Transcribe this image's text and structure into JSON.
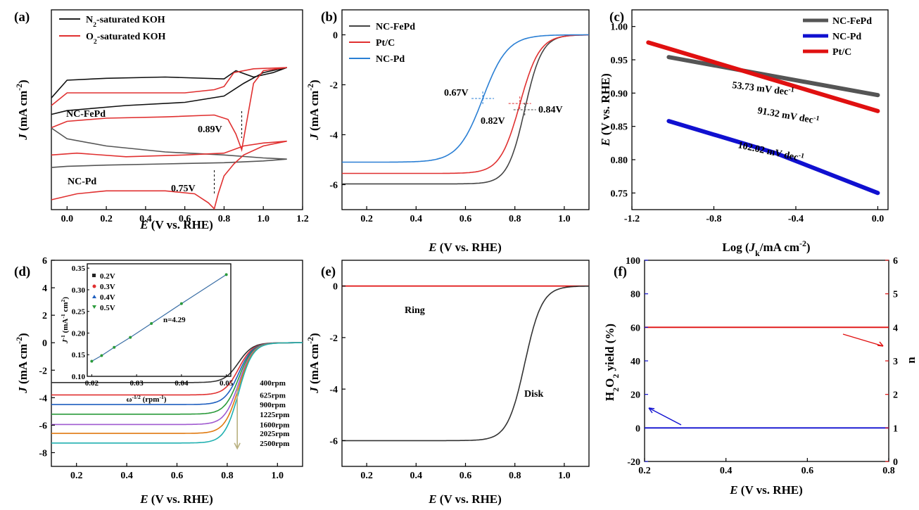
{
  "chart_data": [
    {
      "id": "a",
      "type": "line",
      "panel_label": "(a)",
      "xlabel": "E (V vs. RHE)",
      "ylabel": "J (mA cm-2)",
      "xlim": [
        -0.08,
        1.2
      ],
      "xticks": [
        "0.0",
        "0.2",
        "0.4",
        "0.6",
        "0.8",
        "1.0",
        "1.2"
      ],
      "legend": [
        {
          "label": "N2-saturated KOH",
          "color": "#222222"
        },
        {
          "label": "O2-saturated KOH",
          "color": "#e03030"
        }
      ],
      "curve_labels": [
        "NC-FePd",
        "NC-Pd"
      ],
      "peak_annotations": [
        {
          "label": "0.89V",
          "E": 0.89,
          "sample": "NC-FePd"
        },
        {
          "label": "0.75V",
          "E": 0.75,
          "sample": "NC-Pd"
        }
      ],
      "series": [
        {
          "name": "NC-FePd N2",
          "color": "#111111",
          "cyclic": true,
          "forward": [
            [
              -0.08,
              0.32
            ],
            [
              0.0,
              0.6
            ],
            [
              0.2,
              0.63
            ],
            [
              0.5,
              0.65
            ],
            [
              0.8,
              0.62
            ],
            [
              0.86,
              0.75
            ],
            [
              0.95,
              0.65
            ],
            [
              1.05,
              0.72
            ],
            [
              1.12,
              0.8
            ]
          ],
          "reverse": [
            [
              1.12,
              0.8
            ],
            [
              1.0,
              0.72
            ],
            [
              0.9,
              0.55
            ],
            [
              0.8,
              0.35
            ],
            [
              0.6,
              0.25
            ],
            [
              0.3,
              0.2
            ],
            [
              0.0,
              0.12
            ],
            [
              -0.08,
              0.06
            ]
          ]
        },
        {
          "name": "NC-FePd O2",
          "color": "#e03030",
          "cyclic": true,
          "forward": [
            [
              -0.08,
              0.2
            ],
            [
              0.0,
              0.4
            ],
            [
              0.3,
              0.4
            ],
            [
              0.6,
              0.4
            ],
            [
              0.75,
              0.45
            ],
            [
              0.8,
              0.5
            ],
            [
              0.85,
              0.72
            ],
            [
              0.95,
              0.78
            ],
            [
              1.12,
              0.8
            ]
          ],
          "reverse": [
            [
              1.12,
              0.8
            ],
            [
              1.0,
              0.75
            ],
            [
              0.95,
              0.55
            ],
            [
              0.91,
              -0.15
            ],
            [
              0.89,
              -0.5
            ],
            [
              0.86,
              -0.25
            ],
            [
              0.82,
              -0.02
            ],
            [
              0.75,
              0.05
            ],
            [
              0.5,
              0.02
            ],
            [
              0.2,
              0.0
            ],
            [
              0.0,
              -0.05
            ],
            [
              -0.08,
              -0.15
            ]
          ]
        },
        {
          "name": "NC-Pd N2",
          "color": "#555555",
          "cyclic": true,
          "forward": [
            [
              -0.08,
              1.0
            ],
            [
              0.0,
              0.82
            ],
            [
              0.2,
              0.7
            ],
            [
              0.5,
              0.6
            ],
            [
              0.8,
              0.55
            ],
            [
              1.0,
              0.5
            ],
            [
              1.12,
              0.48
            ]
          ],
          "reverse": [
            [
              1.12,
              0.48
            ],
            [
              1.0,
              0.45
            ],
            [
              0.8,
              0.42
            ],
            [
              0.5,
              0.4
            ],
            [
              0.2,
              0.38
            ],
            [
              0.0,
              0.36
            ],
            [
              -0.08,
              0.34
            ]
          ]
        },
        {
          "name": "NC-Pd O2",
          "color": "#e03030",
          "cyclic": true,
          "forward": [
            [
              -0.08,
              0.55
            ],
            [
              0.05,
              0.58
            ],
            [
              0.3,
              0.52
            ],
            [
              0.6,
              0.55
            ],
            [
              0.8,
              0.58
            ],
            [
              0.9,
              0.7
            ],
            [
              1.0,
              0.75
            ],
            [
              1.12,
              0.78
            ]
          ],
          "reverse": [
            [
              1.12,
              0.78
            ],
            [
              1.0,
              0.7
            ],
            [
              0.9,
              0.55
            ],
            [
              0.85,
              0.4
            ],
            [
              0.8,
              0.2
            ],
            [
              0.77,
              -0.1
            ],
            [
              0.75,
              -0.35
            ],
            [
              0.72,
              -0.25
            ],
            [
              0.65,
              -0.1
            ],
            [
              0.5,
              -0.05
            ],
            [
              0.2,
              -0.05
            ],
            [
              0.05,
              -0.1
            ],
            [
              -0.08,
              -0.2
            ]
          ]
        }
      ]
    },
    {
      "id": "b",
      "type": "line",
      "panel_label": "(b)",
      "xlabel": "E (V vs. RHE)",
      "ylabel": "J (mA cm-2)",
      "xlim": [
        0.1,
        1.1
      ],
      "ylim": [
        -7,
        1
      ],
      "xticks": [
        0.2,
        0.4,
        0.6,
        0.8,
        1.0
      ],
      "yticks": [
        0,
        -2,
        -4,
        -6
      ],
      "series": [
        {
          "name": "NC-FePd",
          "color": "#444444",
          "limit": -5.97,
          "half": 0.84,
          "w": 0.035
        },
        {
          "name": "Pt/C",
          "color": "#e03030",
          "limit": -5.55,
          "half": 0.82,
          "w": 0.04
        },
        {
          "name": "NC-Pd",
          "color": "#2a7fd4",
          "limit": -5.1,
          "half": 0.67,
          "w": 0.05
        }
      ],
      "annotations": [
        {
          "label": "0.67V",
          "E": 0.67,
          "J": -2.55
        },
        {
          "label": "0.82V",
          "E": 0.82,
          "J": -2.75
        },
        {
          "label": "0.84V",
          "E": 0.84,
          "J": -3.0
        }
      ]
    },
    {
      "id": "c",
      "type": "line",
      "panel_label": "(c)",
      "xlabel": "Log (Jk/mA cm-2)",
      "ylabel": "E (V vs. RHE)",
      "xlim": [
        -1.2,
        0.05
      ],
      "ylim": [
        0.725,
        1.025
      ],
      "xticks": [
        -1.2,
        -0.8,
        -0.4,
        0.0
      ],
      "yticks": [
        0.75,
        0.8,
        0.85,
        0.9,
        0.95,
        1.0
      ],
      "series": [
        {
          "name": "NC-FePd",
          "color": "#555555",
          "x": [
            -1.02,
            0.0
          ],
          "y": [
            0.954,
            0.897
          ],
          "slope_label": "53.73 mV dec-1"
        },
        {
          "name": "NC-Pd",
          "color": "#1010d0",
          "x": [
            -1.02,
            -0.5,
            0.0
          ],
          "y": [
            0.858,
            0.81,
            0.75
          ],
          "slope_label": "102.02 mV dec-1"
        },
        {
          "name": "Pt/C",
          "color": "#e01010",
          "x": [
            -1.12,
            0.0
          ],
          "y": [
            0.976,
            0.873
          ],
          "slope_label": "91.32 mV dec-1"
        }
      ]
    },
    {
      "id": "d",
      "type": "line",
      "panel_label": "(d)",
      "xlabel": "E (V vs. RHE)",
      "ylabel": "J (mA cm-2)",
      "xlim": [
        0.1,
        1.1
      ],
      "ylim": [
        -9,
        6
      ],
      "xticks": [
        0.2,
        0.4,
        0.6,
        0.8,
        1.0
      ],
      "yticks": [
        -8,
        -6,
        -4,
        -2,
        0,
        2,
        4,
        6
      ],
      "series": [
        {
          "name": "400rpm",
          "color": "#333333",
          "limit": -2.9
        },
        {
          "name": "625rpm",
          "color": "#e03030",
          "limit": -3.8
        },
        {
          "name": "900rpm",
          "color": "#1f5fbf",
          "limit": -4.5
        },
        {
          "name": "1225rpm",
          "color": "#2a9a3a",
          "limit": -5.2
        },
        {
          "name": "1600rpm",
          "color": "#a05ad0",
          "limit": -5.95
        },
        {
          "name": "2025rpm",
          "color": "#e07a10",
          "limit": -6.6
        },
        {
          "name": "2500rpm",
          "color": "#20b0b0",
          "limit": -7.3
        }
      ],
      "inset": {
        "xlabel": "ω-1/2 (rpm-1)",
        "ylabel": "J-1 (mA-1 cm2)",
        "xlim": [
          0.019,
          0.051
        ],
        "ylim": [
          0.1,
          0.36
        ],
        "xticks": [
          0.02,
          0.03,
          0.04,
          0.05
        ],
        "yticks": [
          0.1,
          0.15,
          0.2,
          0.25,
          0.3,
          0.35
        ],
        "annotation": "n=4.29",
        "series": [
          {
            "name": "0.2V",
            "color": "#222222",
            "marker": "square"
          },
          {
            "name": "0.3V",
            "color": "#e03030",
            "marker": "circle"
          },
          {
            "name": "0.4V",
            "color": "#1f5fbf",
            "marker": "triangle"
          },
          {
            "name": "0.5V",
            "color": "#2a9a3a",
            "marker": "triangle-down"
          }
        ],
        "x": [
          0.02,
          0.0222,
          0.025,
          0.0286,
          0.0333,
          0.04,
          0.05
        ],
        "y": [
          0.135,
          0.148,
          0.167,
          0.19,
          0.222,
          0.268,
          0.335
        ]
      }
    },
    {
      "id": "e",
      "type": "line",
      "panel_label": "(e)",
      "xlabel": "E (V vs. RHE)",
      "ylabel": "J (mA cm-2)",
      "xlim": [
        0.1,
        1.1
      ],
      "ylim": [
        -7,
        1
      ],
      "xticks": [
        0.2,
        0.4,
        0.6,
        0.8,
        1.0
      ],
      "yticks": [
        0,
        -2,
        -4,
        -6
      ],
      "series": [
        {
          "name": "Ring",
          "color": "#e01010",
          "value": 0.0
        },
        {
          "name": "Disk",
          "color": "#333333",
          "limit": -6.0,
          "half": 0.84,
          "w": 0.035
        }
      ]
    },
    {
      "id": "f",
      "type": "line",
      "panel_label": "(f)",
      "xlabel": "E (V vs. RHE)",
      "ylabel_left": "H2O2 yield (%)",
      "ylabel_right": "n",
      "xlim": [
        0.2,
        0.8
      ],
      "ylim_left": [
        -20,
        100
      ],
      "ylim_right": [
        0,
        6
      ],
      "xticks": [
        0.2,
        0.4,
        0.6,
        0.8
      ],
      "yticks_left": [
        -20,
        0,
        20,
        40,
        60,
        80,
        100
      ],
      "yticks_right": [
        0,
        1,
        2,
        3,
        4,
        5,
        6
      ],
      "series": [
        {
          "name": "H2O2 yield",
          "color": "#1010d0",
          "axis": "left",
          "value": 0.0
        },
        {
          "name": "n",
          "color": "#e01010",
          "axis": "right",
          "value": 4.0
        }
      ]
    }
  ]
}
